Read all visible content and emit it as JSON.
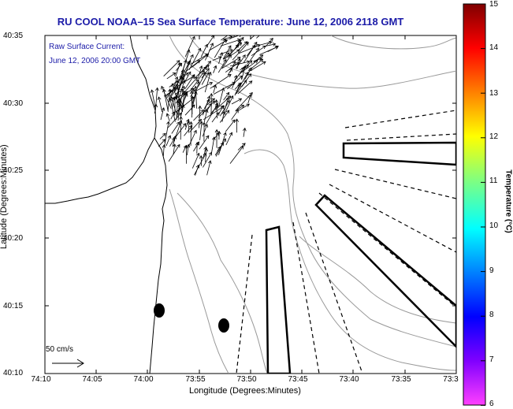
{
  "title": "RU COOL  NOAA–15  Sea Surface Temperature:  June 12, 2006 2118 GMT",
  "annotation": {
    "line1": "Raw Surface Current:",
    "line2": "June 12, 2006 20:00 GMT"
  },
  "scale_arrow_label": "50 cm/s",
  "axes": {
    "xlabel": "Longitude (Degrees:Minutes)",
    "ylabel": "Latitude (Degrees:Minutes)",
    "x_ticks": [
      "74:10",
      "74:05",
      "74:00",
      "73:55",
      "73:50",
      "73:45",
      "73:40",
      "73:35",
      "73:3"
    ],
    "y_ticks": [
      "40:35",
      "40:30",
      "40:25",
      "40:20",
      "40:15",
      "40:10"
    ]
  },
  "colorbar": {
    "label": "Temperature (°C)",
    "ticks": [
      "15",
      "14",
      "13",
      "12",
      "11",
      "10",
      "9",
      "8",
      "7",
      "6"
    ],
    "colors": [
      "#7f0000",
      "#ff0000",
      "#ff8000",
      "#ffff00",
      "#80ff80",
      "#00ffff",
      "#0080ff",
      "#0000ff",
      "#8000ff",
      "#ff40ff"
    ]
  }
}
